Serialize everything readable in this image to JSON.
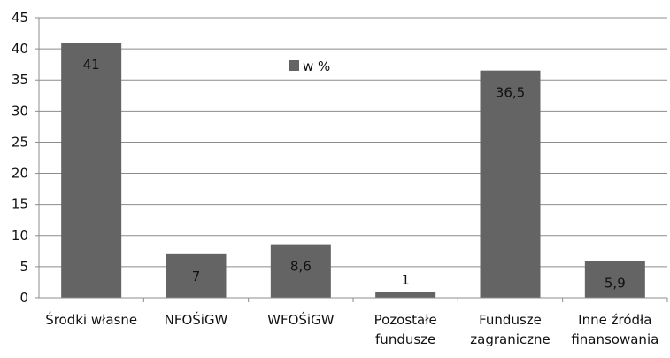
{
  "chart_data": {
    "type": "bar",
    "categories": [
      [
        "Środki własne"
      ],
      [
        "NFOŚiGW"
      ],
      [
        "WFOŚiGW"
      ],
      [
        "Pozostałe",
        "fundusze"
      ],
      [
        "Fundusze",
        "zagraniczne"
      ],
      [
        "Inne źródła",
        "finansowania"
      ]
    ],
    "series": [
      {
        "name": "w %",
        "values": [
          41,
          7,
          8.6,
          1,
          36.5,
          5.9
        ]
      }
    ],
    "data_labels": [
      "41",
      "7",
      "8,6",
      "1",
      "36,5",
      "5,9"
    ],
    "yticks": [
      0,
      5,
      10,
      15,
      20,
      25,
      30,
      35,
      40,
      45
    ],
    "ylim": [
      0,
      45
    ],
    "grid": true,
    "legend": "top-center",
    "colors": {
      "bar": "#646464",
      "grid": "#8c8c8c",
      "axis": "#8c8c8c"
    }
  }
}
